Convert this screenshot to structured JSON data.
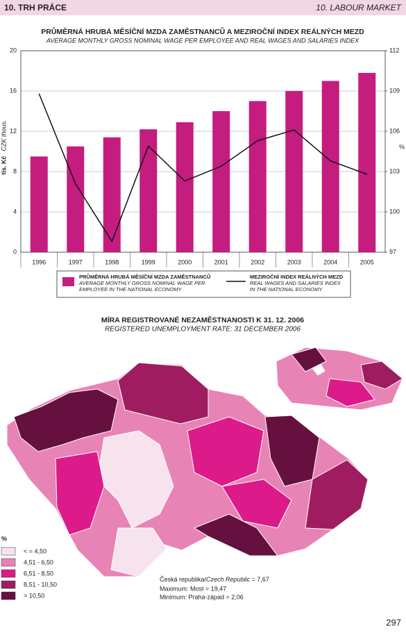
{
  "header": {
    "left": "10. TRH PRÁCE",
    "right": "10. LABOUR MARKET"
  },
  "chart_data": {
    "type": "bar-line",
    "title": "PRŮMĚRNÁ HRUBÁ MĚSÍČNÍ MZDA ZAMĚSTNANCŮ A MEZIROČNÍ INDEX REÁLNÝCH MEZD",
    "subtitle": "AVERAGE MONTHLY GROSS NOMINAL WAGE PER EMPLOYEE AND REAL WAGES AND SALARIES INDEX",
    "y_label": "tis. Kč",
    "y_label_en": "CZK thous.",
    "y2_label": "%",
    "categories": [
      "1996",
      "1997",
      "1998",
      "1999",
      "2000",
      "2001",
      "2002",
      "2003",
      "2004",
      "2005"
    ],
    "series": [
      {
        "name": "PRŮMĚRNÁ HRUBÁ MĚSÍČNÍ MZDA ZAMĚSTNANCŮ",
        "name_en": "AVERAGE MONTHLY GROSS NOMINAL WAGE PER EMPLOYEE IN THE NATIONAL ECONOMY",
        "color": "#c41d7f",
        "values": [
          9.5,
          10.5,
          11.4,
          12.2,
          12.9,
          14.0,
          15.0,
          16.0,
          17.0,
          17.8
        ]
      },
      {
        "name": "MEZIROČNÍ INDEX REÁLNÝCH MEZD",
        "name_en": "REAL WAGES AND SALARIES INDEX IN THE NATIONAL ECONOMY",
        "color": "#111111",
        "axis": "y2",
        "values": [
          108.8,
          102.1,
          97.8,
          104.9,
          102.3,
          103.4,
          105.3,
          106.1,
          103.8,
          102.8
        ]
      }
    ],
    "ylim": [
      0,
      20
    ],
    "yticks": [
      0,
      4,
      8,
      12,
      16,
      20
    ],
    "y2lim": [
      97,
      112
    ],
    "y2ticks": [
      97,
      100,
      103,
      106,
      109,
      112
    ],
    "grid": true
  },
  "map": {
    "title": "MÍRA REGISTROVANÉ NEZAMĚSTNANOSTI K 31. 12. 2006",
    "subtitle": "REGISTERED UNEMPLOYMENT RATE: 31 DECEMBER 2006",
    "legend_title": "%",
    "classes": [
      {
        "label": "< = 4,50",
        "color": "#f6e3ee"
      },
      {
        "label": "4,51 - 6,50",
        "color": "#e883b6"
      },
      {
        "label": "6,51 - 8,50",
        "color": "#dd1a8a"
      },
      {
        "label": "8,51 - 10,50",
        "color": "#9e1c5f"
      },
      {
        "label": "> 10,50",
        "color": "#661040"
      }
    ],
    "note_cz": "Česká republika/",
    "note_en": "Czech Republic",
    "note_value": " = 7,67",
    "max": "Maximum: Most = 19,47",
    "min": "Minimum: Praha-západ = 2,06"
  },
  "page_number": "297"
}
